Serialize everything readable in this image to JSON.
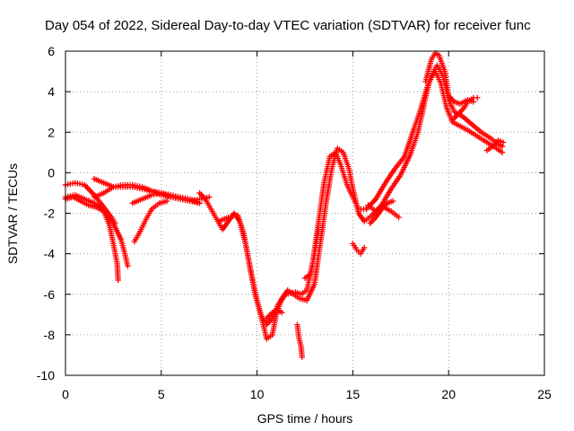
{
  "chart_data": {
    "type": "scatter",
    "title": "Day 054 of 2022, Sidereal Day-to-day VTEC variation (SDTVAR) for receiver func",
    "xlabel": "GPS time / hours",
    "ylabel": "SDTVAR / TECUs",
    "xlim": [
      0,
      25
    ],
    "ylim": [
      -10,
      6
    ],
    "xticks": [
      0,
      5,
      10,
      15,
      20,
      25
    ],
    "yticks": [
      -10,
      -8,
      -6,
      -4,
      -2,
      0,
      2,
      4,
      6
    ],
    "grid": true,
    "marker": "+",
    "series": [
      {
        "color": "#ff0000",
        "points": [
          [
            0,
            -1.3
          ],
          [
            0.4,
            -1.2
          ],
          [
            0.8,
            -1.4
          ],
          [
            1.2,
            -1.6
          ],
          [
            1.6,
            -1.7
          ],
          [
            2.0,
            -1.9
          ],
          [
            2.3,
            -2.6
          ],
          [
            2.5,
            -3.5
          ],
          [
            2.7,
            -4.5
          ],
          [
            2.75,
            -5.3
          ]
        ]
      },
      {
        "color": "#ff0000",
        "points": [
          [
            0,
            -1.2
          ],
          [
            0.5,
            -1.1
          ],
          [
            1.0,
            -1.3
          ],
          [
            1.5,
            -1.5
          ],
          [
            2.0,
            -1.9
          ],
          [
            2.5,
            -2.5
          ],
          [
            2.9,
            -3.3
          ],
          [
            3.1,
            -4.0
          ],
          [
            3.25,
            -4.6
          ]
        ]
      },
      {
        "color": "#ff0000",
        "points": [
          [
            0,
            -0.6
          ],
          [
            0.5,
            -0.5
          ],
          [
            1.0,
            -0.6
          ],
          [
            1.5,
            -1.1
          ],
          [
            2.0,
            -1.7
          ],
          [
            2.4,
            -2.2
          ],
          [
            2.6,
            -2.5
          ]
        ]
      },
      {
        "color": "#ff0000",
        "points": [
          [
            1.5,
            -0.3
          ],
          [
            2.0,
            -0.5
          ],
          [
            2.5,
            -0.7
          ],
          [
            3.0,
            -0.7
          ],
          [
            3.5,
            -0.7
          ],
          [
            4.0,
            -0.8
          ],
          [
            4.5,
            -0.9
          ],
          [
            5.0,
            -1.1
          ],
          [
            5.5,
            -1.2
          ],
          [
            6.0,
            -1.3
          ],
          [
            6.5,
            -1.4
          ],
          [
            7.0,
            -1.5
          ]
        ]
      },
      {
        "color": "#ff0000",
        "points": [
          [
            1.5,
            -1.2
          ],
          [
            2.0,
            -1.0
          ],
          [
            2.5,
            -0.7
          ],
          [
            3.0,
            -0.6
          ],
          [
            3.5,
            -0.6
          ],
          [
            4.0,
            -0.7
          ],
          [
            4.5,
            -0.9
          ],
          [
            5.0,
            -1.0
          ],
          [
            5.5,
            -1.2
          ],
          [
            6.0,
            -1.3
          ],
          [
            6.5,
            -1.4
          ],
          [
            7.0,
            -1.3
          ],
          [
            7.5,
            -1.2
          ]
        ]
      },
      {
        "color": "#ff0000",
        "points": [
          [
            3.5,
            -1.5
          ],
          [
            4.0,
            -1.3
          ],
          [
            4.5,
            -1.1
          ],
          [
            5.0,
            -1.0
          ],
          [
            5.5,
            -1.1
          ],
          [
            6.0,
            -1.2
          ],
          [
            6.5,
            -1.3
          ],
          [
            7.0,
            -1.5
          ]
        ]
      },
      {
        "color": "#ff0000",
        "points": [
          [
            3.6,
            -3.4
          ],
          [
            3.9,
            -2.9
          ],
          [
            4.2,
            -2.3
          ],
          [
            4.5,
            -1.8
          ],
          [
            4.9,
            -1.5
          ],
          [
            5.3,
            -1.4
          ]
        ]
      },
      {
        "color": "#ff0000",
        "points": [
          [
            7.0,
            -1.0
          ],
          [
            7.3,
            -1.3
          ],
          [
            7.6,
            -1.8
          ],
          [
            7.9,
            -2.3
          ],
          [
            8.2,
            -2.8
          ],
          [
            8.5,
            -2.4
          ],
          [
            8.8,
            -2.0
          ],
          [
            9.1,
            -2.4
          ],
          [
            9.4,
            -3.5
          ],
          [
            9.7,
            -5.0
          ],
          [
            10.0,
            -6.3
          ],
          [
            10.3,
            -7.4
          ],
          [
            10.5,
            -8.2
          ],
          [
            10.8,
            -8.0
          ],
          [
            11.0,
            -7.0
          ],
          [
            11.3,
            -6.2
          ],
          [
            11.6,
            -5.8
          ],
          [
            11.9,
            -6.0
          ],
          [
            12.2,
            -6.2
          ],
          [
            12.6,
            -6.3
          ],
          [
            13.0,
            -5.5
          ],
          [
            13.3,
            -3.5
          ],
          [
            13.6,
            -1.5
          ],
          [
            13.9,
            0.2
          ],
          [
            14.2,
            1.2
          ],
          [
            14.5,
            1.0
          ],
          [
            14.8,
            0.2
          ],
          [
            15.0,
            -0.8
          ],
          [
            15.3,
            -2.0
          ],
          [
            15.6,
            -2.4
          ],
          [
            16.0,
            -2.1
          ],
          [
            16.5,
            -1.6
          ],
          [
            17.0,
            -0.8
          ],
          [
            17.5,
            -0.1
          ],
          [
            18.0,
            0.9
          ],
          [
            18.4,
            2.0
          ],
          [
            18.7,
            3.3
          ],
          [
            19.0,
            4.5
          ],
          [
            19.3,
            5.0
          ],
          [
            19.6,
            4.4
          ],
          [
            19.9,
            3.2
          ],
          [
            20.2,
            2.5
          ],
          [
            20.6,
            2.3
          ],
          [
            21.0,
            2.1
          ],
          [
            21.5,
            1.8
          ],
          [
            22.0,
            1.5
          ],
          [
            22.5,
            1.2
          ],
          [
            22.8,
            1.0
          ]
        ]
      },
      {
        "color": "#ff0000",
        "points": [
          [
            8.0,
            -2.4
          ],
          [
            8.5,
            -2.2
          ],
          [
            9.0,
            -2.1
          ],
          [
            9.3,
            -3.0
          ],
          [
            9.6,
            -4.5
          ],
          [
            9.9,
            -6.0
          ],
          [
            10.2,
            -7.0
          ],
          [
            10.5,
            -7.5
          ],
          [
            10.8,
            -7.2
          ],
          [
            11.1,
            -6.5
          ],
          [
            11.5,
            -6.0
          ],
          [
            12.0,
            -5.9
          ],
          [
            12.3,
            -6.0
          ],
          [
            12.6,
            -5.8
          ],
          [
            12.9,
            -4.5
          ],
          [
            13.2,
            -2.5
          ],
          [
            13.5,
            -0.5
          ],
          [
            13.8,
            0.8
          ],
          [
            14.1,
            1.0
          ],
          [
            14.4,
            0.3
          ],
          [
            14.7,
            -0.6
          ],
          [
            15.0,
            -1.2
          ],
          [
            15.3,
            -1.8
          ],
          [
            15.7,
            -1.8
          ],
          [
            16.2,
            -1.3
          ],
          [
            16.7,
            -0.5
          ],
          [
            17.2,
            0.2
          ],
          [
            17.7,
            0.8
          ],
          [
            18.2,
            2.2
          ],
          [
            18.5,
            3.0
          ],
          [
            18.8,
            4.0
          ],
          [
            19.1,
            4.8
          ],
          [
            19.4,
            5.3
          ],
          [
            19.7,
            4.8
          ],
          [
            20.0,
            3.6
          ],
          [
            20.3,
            3.0
          ],
          [
            20.7,
            2.8
          ],
          [
            21.2,
            2.4
          ],
          [
            21.7,
            2.0
          ],
          [
            22.2,
            1.7
          ],
          [
            22.6,
            1.4
          ],
          [
            22.8,
            1.3
          ]
        ]
      },
      {
        "color": "#ff0000",
        "points": [
          [
            18.8,
            4.5
          ],
          [
            19.1,
            5.6
          ],
          [
            19.3,
            5.9
          ],
          [
            19.5,
            5.8
          ],
          [
            19.8,
            5.0
          ],
          [
            20.0,
            3.8
          ],
          [
            20.3,
            3.5
          ],
          [
            20.6,
            3.4
          ],
          [
            21.0,
            3.6
          ],
          [
            21.3,
            3.5
          ]
        ]
      },
      {
        "color": "#ff0000",
        "points": [
          [
            20.2,
            2.6
          ],
          [
            20.5,
            2.9
          ],
          [
            20.8,
            3.2
          ],
          [
            21.0,
            3.5
          ],
          [
            21.3,
            3.7
          ],
          [
            21.5,
            3.7
          ]
        ]
      },
      {
        "color": "#ff0000",
        "points": [
          [
            12.1,
            -7.5
          ],
          [
            12.2,
            -8.2
          ],
          [
            12.3,
            -8.6
          ],
          [
            12.35,
            -9.1
          ]
        ]
      },
      {
        "color": "#ff0000",
        "points": [
          [
            10.5,
            -7.2
          ],
          [
            10.8,
            -6.9
          ],
          [
            11.1,
            -6.8
          ],
          [
            11.3,
            -6.9
          ]
        ]
      },
      {
        "color": "#ff0000",
        "points": [
          [
            12.5,
            -5.2
          ],
          [
            12.8,
            -5.0
          ],
          [
            13.0,
            -4.0
          ],
          [
            13.2,
            -2.8
          ]
        ]
      },
      {
        "color": "#ff0000",
        "points": [
          [
            15.0,
            -3.5
          ],
          [
            15.2,
            -3.8
          ],
          [
            15.4,
            -4.0
          ],
          [
            15.6,
            -3.7
          ]
        ]
      },
      {
        "color": "#ff0000",
        "points": [
          [
            15.8,
            -1.6
          ],
          [
            16.2,
            -1.9
          ],
          [
            16.6,
            -1.7
          ],
          [
            17.0,
            -1.9
          ],
          [
            17.4,
            -2.2
          ]
        ]
      },
      {
        "color": "#ff0000",
        "points": [
          [
            15.9,
            -2.5
          ],
          [
            16.2,
            -2.2
          ],
          [
            16.5,
            -1.8
          ],
          [
            16.8,
            -1.5
          ],
          [
            17.1,
            -1.4
          ]
        ]
      },
      {
        "color": "#ff0000",
        "points": [
          [
            22.0,
            1.1
          ],
          [
            22.3,
            1.3
          ],
          [
            22.6,
            1.6
          ],
          [
            22.85,
            1.5
          ]
        ]
      }
    ]
  }
}
